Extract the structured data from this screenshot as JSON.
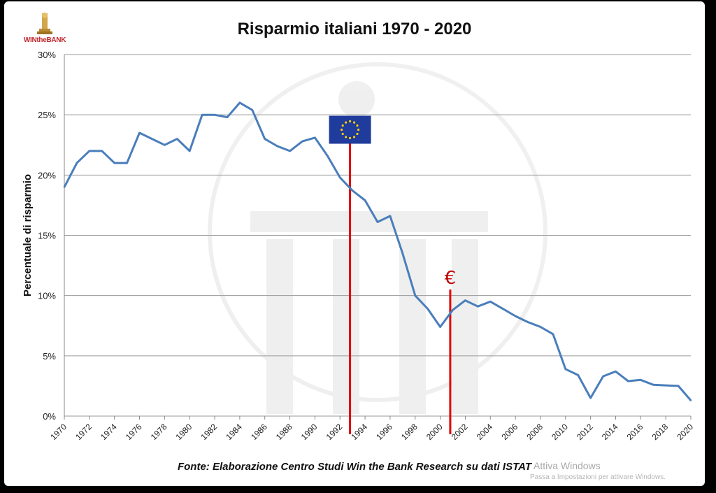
{
  "brand": {
    "logo_text": "WINtheBANK"
  },
  "chart_data": {
    "type": "line",
    "title": "Risparmio italiani 1970 - 2020",
    "xlabel": "",
    "ylabel": "Percentuale di risparmio",
    "ylim": [
      0,
      30
    ],
    "yticks": [
      0,
      5,
      10,
      15,
      20,
      25,
      30
    ],
    "ytick_labels": [
      "0%",
      "5%",
      "10%",
      "15%",
      "20%",
      "25%",
      "30%"
    ],
    "xlim": [
      1970,
      2020
    ],
    "xticks": [
      "1970",
      "1972",
      "1974",
      "1976",
      "1978",
      "1980",
      "1982",
      "1984",
      "1986",
      "1988",
      "1990",
      "1992",
      "1994",
      "1996",
      "1998",
      "2000",
      "2002",
      "2004",
      "2006",
      "2008",
      "2010",
      "2012",
      "2014",
      "2016",
      "2018",
      "2020"
    ],
    "grid": true,
    "color": "#4a7ebb",
    "series": [
      {
        "x": [
          1970,
          1971,
          1972,
          1973,
          1974,
          1975,
          1976,
          1977,
          1978,
          1979,
          1980,
          1981,
          1982,
          1983,
          1984,
          1985,
          1986,
          1987,
          1988,
          1989,
          1990,
          1991,
          1992,
          1993,
          1994,
          1995,
          1996,
          1997,
          1998,
          1999,
          2000,
          2001,
          2002,
          2003,
          2004,
          2005,
          2006,
          2007,
          2008,
          2009,
          2010,
          2011,
          2012,
          2013,
          2014,
          2015,
          2016,
          2017,
          2018,
          2019,
          2020
        ],
        "values": [
          19.0,
          21.0,
          22.0,
          22.0,
          21.0,
          21.0,
          23.5,
          23.0,
          22.5,
          23.0,
          22.0,
          25.0,
          25.0,
          24.8,
          26.0,
          25.4,
          23.0,
          22.4,
          22.0,
          22.8,
          23.1,
          21.6,
          19.8,
          18.7,
          17.9,
          16.1,
          16.6,
          13.5,
          10.0,
          8.9,
          7.4,
          8.8,
          9.6,
          9.1,
          9.5,
          8.9,
          8.3,
          7.8,
          7.4,
          6.8,
          3.9,
          3.4,
          1.5,
          3.3,
          3.7,
          2.9,
          3.0,
          2.6,
          2.55,
          2.5,
          1.3
        ]
      }
    ],
    "annotations": [
      {
        "type": "vline",
        "x": 1992.8,
        "y_top": 22.6,
        "color": "#e00000",
        "icon": "eu-flag-icon",
        "flag_color": "#1f3b9b",
        "star_color": "#ffcc00"
      },
      {
        "type": "vline",
        "x": 2000.8,
        "y_top": 10.5,
        "color": "#e00000",
        "label": "€",
        "label_color": "#c00000"
      }
    ]
  },
  "footer": {
    "source": "Fonte: Elaborazione Centro Studi Win the Bank Research su dati ISTAT",
    "watermark_title": "Attiva Windows",
    "watermark_sub": "Passa a Impostazioni per attivare Windows."
  }
}
